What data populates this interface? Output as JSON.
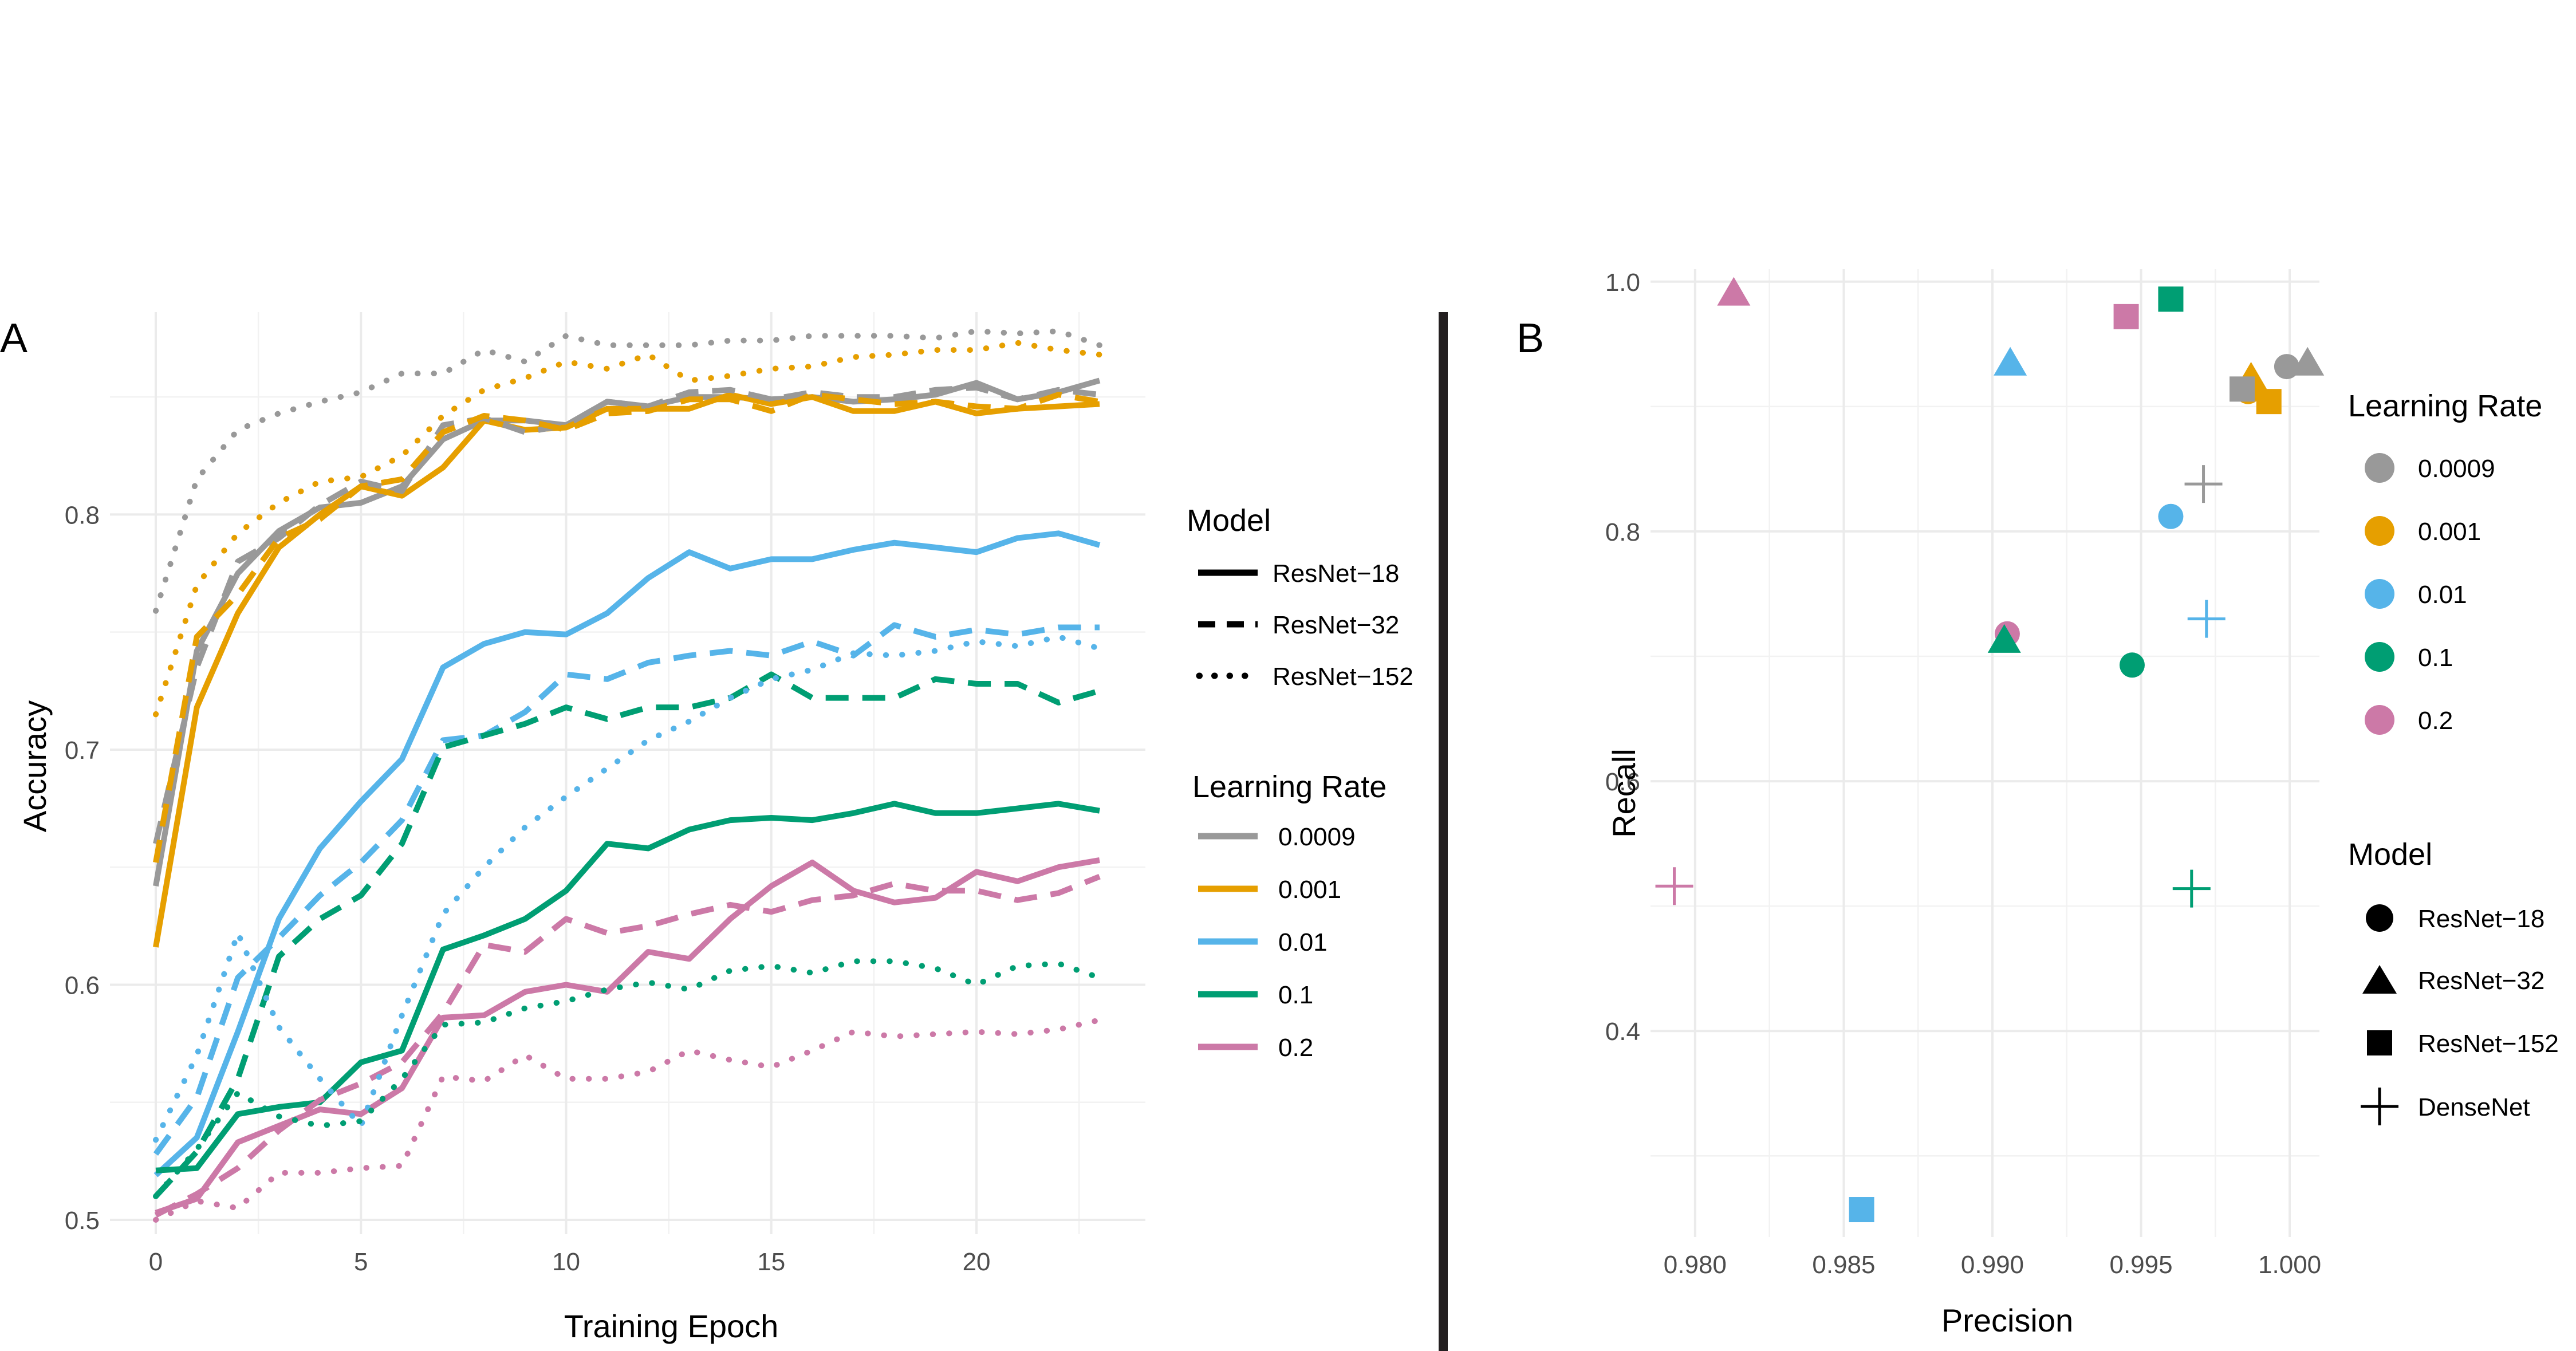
{
  "panel_a_letter": "A",
  "panel_b_letter": "B",
  "colors": {
    "0.0009": "#999999",
    "0.001": "#E69F00",
    "0.01": "#56B4E9",
    "0.1": "#009E73",
    "0.2": "#CC79A7",
    "divider": "#231f20"
  },
  "chart_data": [
    {
      "type": "line",
      "panel": "A",
      "xlabel": "Training Epoch",
      "ylabel": "Accuracy",
      "xlim": [
        0,
        23
      ],
      "ylim": [
        0.5,
        0.88
      ],
      "xticks": [
        0,
        5,
        10,
        15,
        20
      ],
      "yticks": [
        0.5,
        0.6,
        0.7,
        0.8
      ],
      "x": [
        0,
        1,
        2,
        3,
        4,
        5,
        6,
        7,
        8,
        9,
        10,
        11,
        12,
        13,
        14,
        15,
        16,
        17,
        18,
        19,
        20,
        21,
        22,
        23
      ],
      "grid": true,
      "legend": [
        {
          "title": "Model",
          "entries": [
            {
              "label": "ResNet−18",
              "linetype": "solid"
            },
            {
              "label": "ResNet−32",
              "linetype": "dashed"
            },
            {
              "label": "ResNet−152",
              "linetype": "dotted"
            }
          ]
        },
        {
          "title": "Learning Rate",
          "entries": [
            "0.0009",
            "0.001",
            "0.01",
            "0.1",
            "0.2"
          ]
        }
      ],
      "series": [
        {
          "model": "ResNet-18",
          "lr": "0.0009",
          "values": [
            0.642,
            0.742,
            0.775,
            0.793,
            0.803,
            0.805,
            0.812,
            0.832,
            0.84,
            0.84,
            0.838,
            0.848,
            0.846,
            0.85,
            0.85,
            0.849,
            0.85,
            0.848,
            0.849,
            0.851,
            0.856,
            0.849,
            0.852,
            0.857
          ]
        },
        {
          "model": "ResNet-18",
          "lr": "0.001",
          "values": [
            0.616,
            0.718,
            0.758,
            0.786,
            0.8,
            0.812,
            0.808,
            0.82,
            0.84,
            0.836,
            0.837,
            0.845,
            0.845,
            0.845,
            0.851,
            0.847,
            0.85,
            0.844,
            0.844,
            0.848,
            0.843,
            0.845,
            0.846,
            0.847
          ]
        },
        {
          "model": "ResNet-18",
          "lr": "0.01",
          "values": [
            0.519,
            0.535,
            0.58,
            0.628,
            0.658,
            0.678,
            0.696,
            0.735,
            0.745,
            0.75,
            0.749,
            0.758,
            0.773,
            0.784,
            0.777,
            0.781,
            0.781,
            0.785,
            0.788,
            0.786,
            0.784,
            0.79,
            0.792,
            0.787
          ]
        },
        {
          "model": "ResNet-18",
          "lr": "0.1",
          "values": [
            0.521,
            0.522,
            0.545,
            0.548,
            0.55,
            0.567,
            0.572,
            0.615,
            0.621,
            0.628,
            0.64,
            0.66,
            0.658,
            0.666,
            0.67,
            0.671,
            0.67,
            0.673,
            0.677,
            0.673,
            0.673,
            0.675,
            0.677,
            0.674
          ]
        },
        {
          "model": "ResNet-18",
          "lr": "0.2",
          "values": [
            0.503,
            0.509,
            0.533,
            0.54,
            0.547,
            0.545,
            0.556,
            0.586,
            0.587,
            0.597,
            0.6,
            0.597,
            0.614,
            0.611,
            0.628,
            0.642,
            0.652,
            0.64,
            0.635,
            0.637,
            0.648,
            0.644,
            0.65,
            0.653
          ]
        },
        {
          "model": "ResNet-32",
          "lr": "0.0009",
          "values": [
            0.66,
            0.735,
            0.78,
            0.79,
            0.804,
            0.814,
            0.81,
            0.838,
            0.841,
            0.835,
            0.838,
            0.848,
            0.846,
            0.852,
            0.853,
            0.849,
            0.852,
            0.85,
            0.85,
            0.853,
            0.854,
            0.849,
            0.853,
            0.851
          ]
        },
        {
          "model": "ResNet-32",
          "lr": "0.001",
          "values": [
            0.652,
            0.748,
            0.766,
            0.79,
            0.798,
            0.812,
            0.815,
            0.835,
            0.842,
            0.84,
            0.836,
            0.843,
            0.844,
            0.849,
            0.849,
            0.844,
            0.851,
            0.849,
            0.847,
            0.848,
            0.846,
            0.845,
            0.851,
            0.848
          ]
        },
        {
          "model": "ResNet-32",
          "lr": "0.01",
          "values": [
            0.528,
            0.552,
            0.603,
            0.62,
            0.638,
            0.652,
            0.67,
            0.704,
            0.706,
            0.716,
            0.732,
            0.73,
            0.737,
            0.74,
            0.742,
            0.74,
            0.746,
            0.74,
            0.753,
            0.748,
            0.751,
            0.749,
            0.752,
            0.752
          ]
        },
        {
          "model": "ResNet-32",
          "lr": "0.1",
          "values": [
            0.51,
            0.529,
            0.56,
            0.612,
            0.628,
            0.638,
            0.66,
            0.701,
            0.706,
            0.711,
            0.718,
            0.713,
            0.718,
            0.718,
            0.722,
            0.732,
            0.722,
            0.722,
            0.722,
            0.73,
            0.728,
            0.728,
            0.72,
            0.725
          ]
        },
        {
          "model": "ResNet-32",
          "lr": "0.2",
          "values": [
            0.502,
            0.511,
            0.522,
            0.538,
            0.551,
            0.558,
            0.567,
            0.588,
            0.617,
            0.614,
            0.628,
            0.622,
            0.625,
            0.63,
            0.634,
            0.631,
            0.636,
            0.638,
            0.643,
            0.64,
            0.64,
            0.636,
            0.639,
            0.646
          ]
        },
        {
          "model": "ResNet-152",
          "lr": "0.0009",
          "values": [
            0.759,
            0.815,
            0.836,
            0.843,
            0.848,
            0.852,
            0.86,
            0.86,
            0.87,
            0.865,
            0.876,
            0.872,
            0.872,
            0.872,
            0.874,
            0.874,
            0.876,
            0.876,
            0.876,
            0.875,
            0.878,
            0.877,
            0.878,
            0.872
          ]
        },
        {
          "model": "ResNet-152",
          "lr": "0.001",
          "values": [
            0.715,
            0.77,
            0.792,
            0.805,
            0.814,
            0.816,
            0.825,
            0.842,
            0.853,
            0.858,
            0.865,
            0.862,
            0.868,
            0.857,
            0.859,
            0.862,
            0.863,
            0.867,
            0.868,
            0.87,
            0.87,
            0.873,
            0.87,
            0.868
          ]
        },
        {
          "model": "ResNet-152",
          "lr": "0.01",
          "values": [
            0.534,
            0.57,
            0.622,
            0.582,
            0.56,
            0.54,
            0.587,
            0.63,
            0.65,
            0.667,
            0.68,
            0.692,
            0.704,
            0.712,
            0.722,
            0.73,
            0.734,
            0.741,
            0.74,
            0.742,
            0.746,
            0.744,
            0.748,
            0.743
          ]
        },
        {
          "model": "ResNet-152",
          "lr": "0.1",
          "values": [
            0.51,
            0.53,
            0.554,
            0.544,
            0.54,
            0.542,
            0.56,
            0.583,
            0.584,
            0.59,
            0.593,
            0.598,
            0.601,
            0.598,
            0.606,
            0.608,
            0.605,
            0.61,
            0.61,
            0.607,
            0.6,
            0.608,
            0.609,
            0.603
          ]
        },
        {
          "model": "ResNet-152",
          "lr": "0.2",
          "values": [
            0.5,
            0.508,
            0.505,
            0.52,
            0.52,
            0.522,
            0.523,
            0.561,
            0.559,
            0.57,
            0.56,
            0.56,
            0.563,
            0.572,
            0.568,
            0.565,
            0.572,
            0.58,
            0.578,
            0.579,
            0.58,
            0.579,
            0.581,
            0.585
          ]
        }
      ]
    },
    {
      "type": "scatter",
      "panel": "B",
      "xlabel": "Precision",
      "ylabel": "Recall",
      "xlim": [
        0.9785,
        1.001
      ],
      "ylim": [
        0.235,
        1.01
      ],
      "xticks": [
        0.98,
        0.985,
        0.99,
        0.995,
        1.0
      ],
      "xtick_labels": [
        "0.980",
        "0.985",
        "0.990",
        "0.995",
        "1.000"
      ],
      "yticks": [
        0.4,
        0.6,
        0.8,
        1.0
      ],
      "ytick_labels": [
        "0.4",
        "0.6",
        "0.8",
        "1.0"
      ],
      "grid": true,
      "legend": [
        {
          "title": "Learning Rate",
          "entries": [
            "0.0009",
            "0.001",
            "0.01",
            "0.1",
            "0.2"
          ]
        },
        {
          "title": "Model",
          "entries": [
            {
              "label": "ResNet−18",
              "shape": "circle"
            },
            {
              "label": "ResNet−32",
              "shape": "triangle"
            },
            {
              "label": "ResNet−152",
              "shape": "square"
            },
            {
              "label": "DenseNet",
              "shape": "plus"
            }
          ]
        }
      ],
      "points": [
        {
          "model": "ResNet-18",
          "lr": "0.0009",
          "x": 0.9999,
          "y": 0.932
        },
        {
          "model": "ResNet-18",
          "lr": "0.001",
          "x": 0.9986,
          "y": 0.912
        },
        {
          "model": "ResNet-18",
          "lr": "0.01",
          "x": 0.996,
          "y": 0.812
        },
        {
          "model": "ResNet-18",
          "lr": "0.1",
          "x": 0.9947,
          "y": 0.693
        },
        {
          "model": "ResNet-18",
          "lr": "0.2",
          "x": 0.9905,
          "y": 0.718
        },
        {
          "model": "ResNet-32",
          "lr": "0.0009",
          "x": 1.0006,
          "y": 0.934
        },
        {
          "model": "ResNet-32",
          "lr": "0.001",
          "x": 0.9987,
          "y": 0.922
        },
        {
          "model": "ResNet-32",
          "lr": "0.01",
          "x": 0.9906,
          "y": 0.934
        },
        {
          "model": "ResNet-32",
          "lr": "0.1",
          "x": 0.9904,
          "y": 0.712
        },
        {
          "model": "ResNet-32",
          "lr": "0.2",
          "x": 0.9813,
          "y": 0.99
        },
        {
          "model": "ResNet-152",
          "lr": "0.0009",
          "x": 0.9984,
          "y": 0.914
        },
        {
          "model": "ResNet-152",
          "lr": "0.001",
          "x": 0.9993,
          "y": 0.904
        },
        {
          "model": "ResNet-152",
          "lr": "0.01",
          "x": 0.9856,
          "y": 0.257
        },
        {
          "model": "ResNet-152",
          "lr": "0.1",
          "x": 0.996,
          "y": 0.986
        },
        {
          "model": "ResNet-152",
          "lr": "0.2",
          "x": 0.9945,
          "y": 0.972
        },
        {
          "model": "DenseNet",
          "lr": "0.0009",
          "x": 0.9971,
          "y": 0.838
        },
        {
          "model": "DenseNet",
          "lr": "0.01",
          "x": 0.9972,
          "y": 0.73
        },
        {
          "model": "DenseNet",
          "lr": "0.1",
          "x": 0.9967,
          "y": 0.514
        },
        {
          "model": "DenseNet",
          "lr": "0.2",
          "x": 0.9793,
          "y": 0.516
        }
      ]
    }
  ]
}
